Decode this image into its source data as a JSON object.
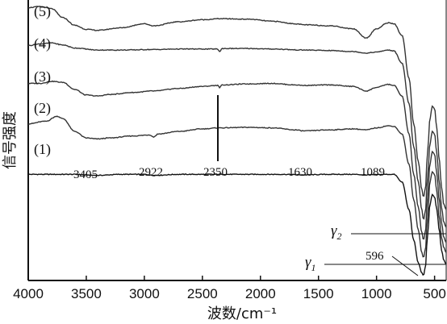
{
  "chart_data": {
    "type": "line",
    "xlabel": "波数/cm⁻¹",
    "ylabel": "信号强度",
    "xlim": [
      4000,
      400
    ],
    "x_reversed": true,
    "xticks": [
      4000,
      3500,
      3000,
      2500,
      2000,
      1500,
      1000,
      500
    ],
    "grid": false,
    "series": [
      {
        "name": "(1)",
        "points": [
          [
            4000,
            0.0
          ],
          [
            3800,
            0.0
          ],
          [
            3600,
            0.0
          ],
          [
            3405,
            -0.02
          ],
          [
            3200,
            0.0
          ],
          [
            3000,
            0.0
          ],
          [
            2922,
            -0.02
          ],
          [
            2700,
            0.0
          ],
          [
            2350,
            0.0
          ],
          [
            2000,
            0.0
          ],
          [
            1800,
            0.0
          ],
          [
            1630,
            -0.01
          ],
          [
            1400,
            0.0
          ],
          [
            1200,
            0.0
          ],
          [
            1089,
            -0.01
          ],
          [
            900,
            0.0
          ],
          [
            850,
            0.0
          ],
          [
            780,
            -0.15
          ],
          [
            720,
            -0.7
          ],
          [
            680,
            -1.3
          ],
          [
            640,
            -1.75
          ],
          [
            610,
            -1.95
          ],
          [
            596,
            -2.0
          ],
          [
            580,
            -1.85
          ],
          [
            560,
            -1.2
          ],
          [
            540,
            -0.6
          ],
          [
            520,
            -0.4
          ],
          [
            500,
            -0.45
          ],
          [
            480,
            -0.7
          ],
          [
            460,
            -1.1
          ],
          [
            440,
            -1.5
          ],
          [
            420,
            -1.7
          ],
          [
            400,
            -1.78
          ]
        ]
      },
      {
        "name": "(2)",
        "points": [
          [
            4000,
            1.0
          ],
          [
            3850,
            1.05
          ],
          [
            3750,
            1.15
          ],
          [
            3700,
            1.1
          ],
          [
            3600,
            0.85
          ],
          [
            3500,
            0.72
          ],
          [
            3405,
            0.7
          ],
          [
            3300,
            0.72
          ],
          [
            3100,
            0.76
          ],
          [
            2950,
            0.78
          ],
          [
            2922,
            0.74
          ],
          [
            2880,
            0.8
          ],
          [
            2700,
            0.85
          ],
          [
            2500,
            0.9
          ],
          [
            2350,
            0.92
          ],
          [
            2100,
            0.93
          ],
          [
            1900,
            0.92
          ],
          [
            1700,
            0.88
          ],
          [
            1630,
            0.86
          ],
          [
            1400,
            0.88
          ],
          [
            1200,
            0.9
          ],
          [
            1089,
            0.88
          ],
          [
            1000,
            0.92
          ],
          [
            900,
            0.96
          ],
          [
            850,
            0.95
          ],
          [
            780,
            0.8
          ],
          [
            720,
            0.2
          ],
          [
            680,
            -0.5
          ],
          [
            640,
            -1.1
          ],
          [
            610,
            -1.55
          ],
          [
            596,
            -1.65
          ],
          [
            580,
            -1.5
          ],
          [
            560,
            -0.85
          ],
          [
            540,
            -0.15
          ],
          [
            520,
            0.05
          ],
          [
            500,
            0.0
          ],
          [
            480,
            -0.35
          ],
          [
            460,
            -0.85
          ],
          [
            440,
            -1.25
          ],
          [
            420,
            -1.45
          ],
          [
            400,
            -1.55
          ]
        ]
      },
      {
        "name": "(3)",
        "points": [
          [
            4000,
            1.8
          ],
          [
            3900,
            1.8
          ],
          [
            3800,
            1.84
          ],
          [
            3700,
            1.82
          ],
          [
            3600,
            1.68
          ],
          [
            3500,
            1.57
          ],
          [
            3405,
            1.55
          ],
          [
            3300,
            1.58
          ],
          [
            3100,
            1.62
          ],
          [
            2922,
            1.65
          ],
          [
            2700,
            1.7
          ],
          [
            2500,
            1.74
          ],
          [
            2370,
            1.76
          ],
          [
            2350,
            1.72
          ],
          [
            2330,
            1.77
          ],
          [
            2100,
            1.79
          ],
          [
            1900,
            1.8
          ],
          [
            1700,
            1.77
          ],
          [
            1630,
            1.76
          ],
          [
            1400,
            1.77
          ],
          [
            1200,
            1.74
          ],
          [
            1089,
            1.65
          ],
          [
            1000,
            1.72
          ],
          [
            900,
            1.78
          ],
          [
            850,
            1.76
          ],
          [
            780,
            1.55
          ],
          [
            720,
            0.8
          ],
          [
            680,
            0.0
          ],
          [
            640,
            -0.65
          ],
          [
            610,
            -1.15
          ],
          [
            596,
            -1.3
          ],
          [
            580,
            -1.15
          ],
          [
            560,
            -0.45
          ],
          [
            540,
            0.2
          ],
          [
            520,
            0.45
          ],
          [
            500,
            0.4
          ],
          [
            480,
            0.0
          ],
          [
            460,
            -0.5
          ],
          [
            440,
            -0.95
          ],
          [
            420,
            -1.25
          ],
          [
            400,
            -1.35
          ]
        ]
      },
      {
        "name": "(4)",
        "points": [
          [
            4000,
            2.55
          ],
          [
            3900,
            2.58
          ],
          [
            3800,
            2.6
          ],
          [
            3700,
            2.56
          ],
          [
            3600,
            2.5
          ],
          [
            3405,
            2.46
          ],
          [
            3200,
            2.46
          ],
          [
            2922,
            2.47
          ],
          [
            2700,
            2.48
          ],
          [
            2370,
            2.48
          ],
          [
            2350,
            2.43
          ],
          [
            2330,
            2.49
          ],
          [
            2100,
            2.49
          ],
          [
            1900,
            2.48
          ],
          [
            1630,
            2.46
          ],
          [
            1400,
            2.45
          ],
          [
            1200,
            2.43
          ],
          [
            1089,
            2.4
          ],
          [
            1000,
            2.42
          ],
          [
            900,
            2.46
          ],
          [
            850,
            2.44
          ],
          [
            780,
            2.2
          ],
          [
            720,
            1.4
          ],
          [
            680,
            0.55
          ],
          [
            640,
            -0.15
          ],
          [
            610,
            -0.7
          ],
          [
            596,
            -0.9
          ],
          [
            580,
            -0.75
          ],
          [
            560,
            -0.05
          ],
          [
            540,
            0.6
          ],
          [
            520,
            0.85
          ],
          [
            500,
            0.8
          ],
          [
            480,
            0.4
          ],
          [
            460,
            -0.15
          ],
          [
            440,
            -0.65
          ],
          [
            420,
            -0.95
          ],
          [
            400,
            -1.05
          ]
        ]
      },
      {
        "name": "(5)",
        "points": [
          [
            4000,
            3.3
          ],
          [
            3900,
            3.32
          ],
          [
            3800,
            3.28
          ],
          [
            3700,
            3.1
          ],
          [
            3600,
            2.95
          ],
          [
            3500,
            2.87
          ],
          [
            3405,
            2.85
          ],
          [
            3200,
            2.9
          ],
          [
            3000,
            2.98
          ],
          [
            2922,
            2.94
          ],
          [
            2700,
            3.02
          ],
          [
            2500,
            3.06
          ],
          [
            2350,
            3.08
          ],
          [
            2100,
            3.07
          ],
          [
            1900,
            3.03
          ],
          [
            1700,
            2.98
          ],
          [
            1630,
            2.96
          ],
          [
            1400,
            2.94
          ],
          [
            1200,
            2.88
          ],
          [
            1089,
            2.7
          ],
          [
            1000,
            2.88
          ],
          [
            900,
            3.0
          ],
          [
            850,
            2.98
          ],
          [
            780,
            2.75
          ],
          [
            720,
            1.9
          ],
          [
            680,
            1.0
          ],
          [
            640,
            0.25
          ],
          [
            610,
            -0.3
          ],
          [
            596,
            -0.45
          ],
          [
            580,
            -0.3
          ],
          [
            560,
            0.45
          ],
          [
            540,
            1.1
          ],
          [
            520,
            1.35
          ],
          [
            500,
            1.3
          ],
          [
            480,
            0.9
          ],
          [
            460,
            0.3
          ],
          [
            440,
            -0.25
          ],
          [
            420,
            -0.6
          ],
          [
            400,
            -0.7
          ]
        ]
      }
    ],
    "annotations": {
      "peaks": [
        "3405",
        "2922",
        "2350",
        "1630",
        "1089"
      ],
      "peak_596": "596",
      "gamma1": {
        "main": "γ",
        "sub": "1"
      },
      "gamma2": {
        "main": "γ",
        "sub": "2"
      }
    },
    "ylim": [
      -2.1,
      3.45
    ]
  }
}
